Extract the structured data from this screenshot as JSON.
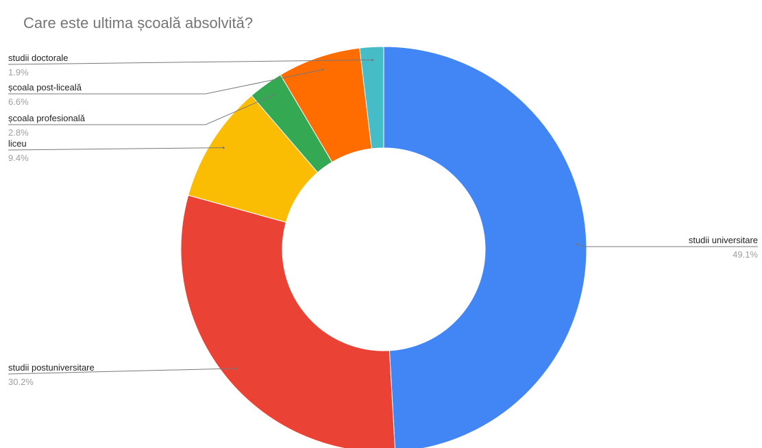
{
  "chart_data": {
    "type": "pie",
    "donut": true,
    "title": "Care este ultima școală absolvită?",
    "start_angle_deg": 0,
    "direction": "clockwise",
    "legend": "none",
    "slices": [
      {
        "label": "studii universitare",
        "value": 49.1,
        "value_label": "49.1%",
        "color": "#4285f4",
        "label_side": "right"
      },
      {
        "label": "studii postuniversitare",
        "value": 30.2,
        "value_label": "30.2%",
        "color": "#ea4335",
        "label_side": "left"
      },
      {
        "label": "liceu",
        "value": 9.4,
        "value_label": "9.4%",
        "color": "#fbbc04",
        "label_side": "left"
      },
      {
        "label": "școala profesională",
        "value": 2.8,
        "value_label": "2.8%",
        "color": "#34a853",
        "label_side": "left"
      },
      {
        "label": "școala post-liceală",
        "value": 6.6,
        "value_label": "6.6%",
        "color": "#ff6d01",
        "label_side": "left"
      },
      {
        "label": "studii doctorale",
        "value": 1.9,
        "value_label": "1.9%",
        "color": "#46bdc6",
        "label_side": "left"
      }
    ]
  },
  "colors": {
    "title": "#757575",
    "label": "#222222",
    "value": "#9e9e9e",
    "leader": "#777777",
    "background": "#ffffff"
  }
}
